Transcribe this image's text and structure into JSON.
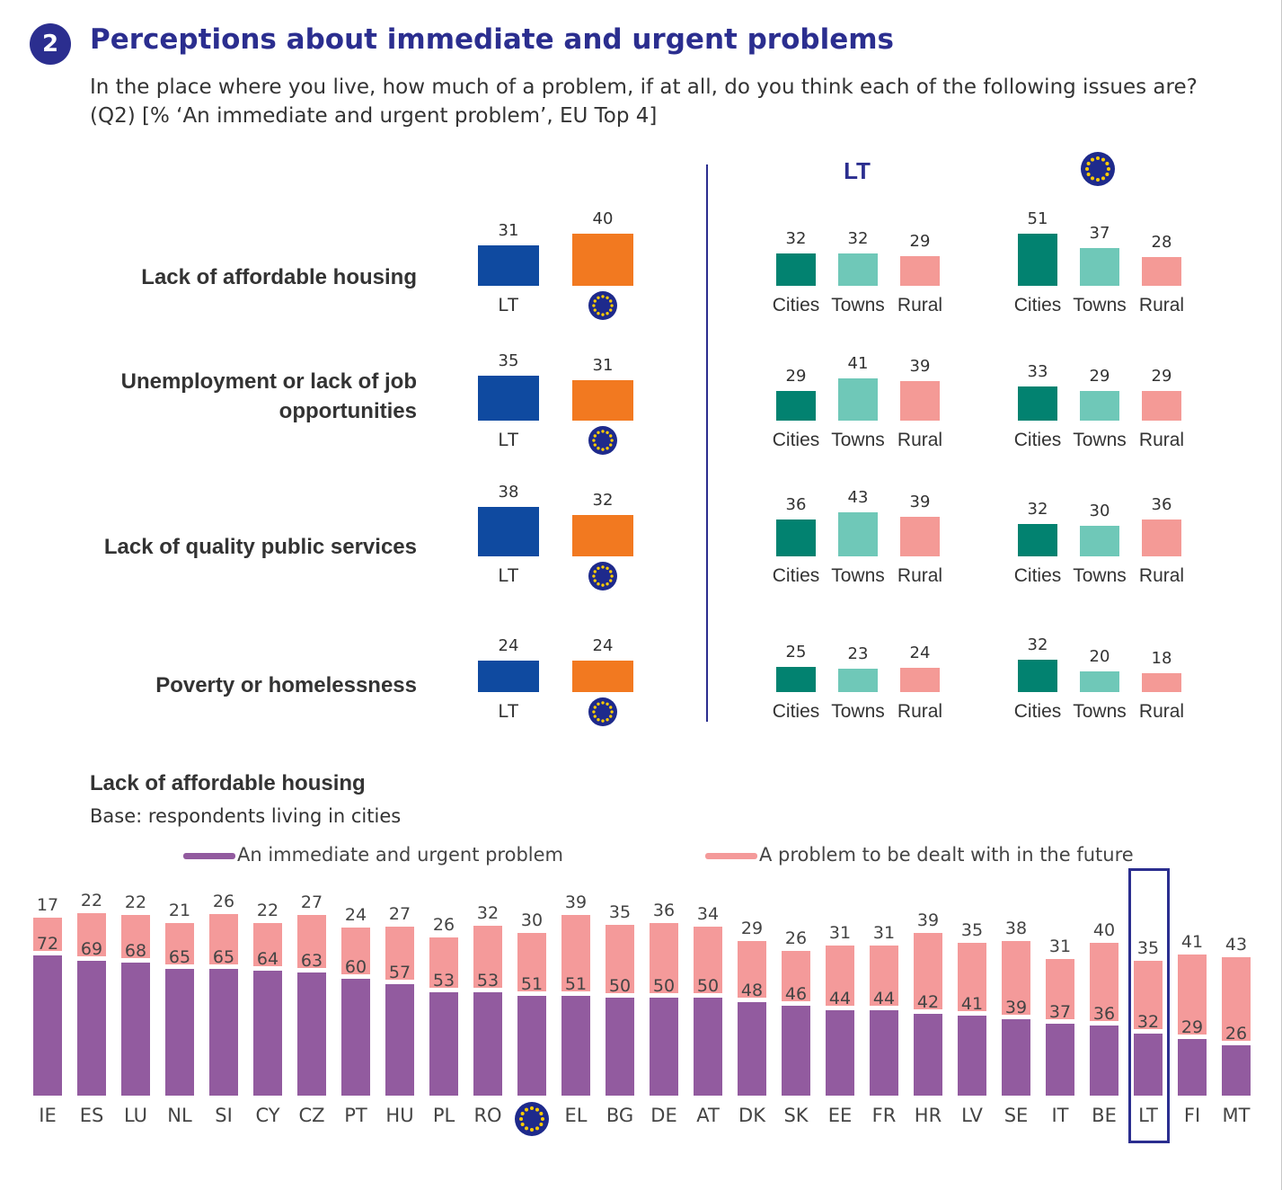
{
  "header": {
    "badge_number": "2",
    "title": "Perceptions about immediate and urgent problems",
    "question_line1": "In the place where you live, how much of a problem, if at all, do you think each of the following issues are?",
    "question_line2": "(Q2) [% ‘An immediate and urgent problem’, EU Top 4]"
  },
  "colors": {
    "title": "#2b2e8f",
    "lt": "#0f4aa0",
    "eu": "#f27920",
    "cities": "#028270",
    "towns": "#6fc8b8",
    "rural": "#f49a96",
    "immediate": "#925b9f",
    "future": "#f49a9a"
  },
  "icons": {
    "eu_flag": "eu-flag-icon",
    "badge": "number-badge"
  },
  "chart_data": [
    {
      "type": "bar",
      "title": "",
      "panel": "overall",
      "categories": [
        "Lack of affordable housing",
        "Unemployment or lack of job opportunities",
        "Lack of quality public services",
        "Poverty or homelessness"
      ],
      "series": [
        {
          "name": "LT",
          "values": [
            31,
            35,
            38,
            24
          ]
        },
        {
          "name": "EU",
          "values": [
            40,
            31,
            32,
            24
          ]
        }
      ]
    },
    {
      "type": "bar",
      "title": "LT",
      "panel": "LT by area",
      "categories": [
        "Lack of affordable housing",
        "Unemployment or lack of job opportunities",
        "Lack of quality public services",
        "Poverty or homelessness"
      ],
      "series": [
        {
          "name": "Cities",
          "values": [
            32,
            29,
            36,
            25
          ]
        },
        {
          "name": "Towns",
          "values": [
            32,
            41,
            43,
            23
          ]
        },
        {
          "name": "Rural",
          "values": [
            29,
            39,
            39,
            24
          ]
        }
      ]
    },
    {
      "type": "bar",
      "title": "",
      "panel": "EU by area",
      "categories": [
        "Lack of affordable housing",
        "Unemployment or lack of job opportunities",
        "Lack of quality public services",
        "Poverty or homelessness"
      ],
      "series": [
        {
          "name": "Cities",
          "values": [
            51,
            33,
            32,
            32
          ]
        },
        {
          "name": "Towns",
          "values": [
            37,
            29,
            30,
            20
          ]
        },
        {
          "name": "Rural",
          "values": [
            28,
            29,
            36,
            18
          ]
        }
      ]
    },
    {
      "type": "bar",
      "stacked": true,
      "title": "Lack of affordable housing",
      "subtitle": "Base: respondents living in cities",
      "legend_position": "top",
      "categories": [
        "IE",
        "ES",
        "LU",
        "NL",
        "SI",
        "CY",
        "CZ",
        "PT",
        "HU",
        "PL",
        "RO",
        "EU",
        "EL",
        "BG",
        "DE",
        "AT",
        "DK",
        "SK",
        "EE",
        "FR",
        "HR",
        "LV",
        "SE",
        "IT",
        "BE",
        "LT",
        "FI",
        "MT"
      ],
      "highlight": "LT",
      "series": [
        {
          "name": "An immediate and urgent problem",
          "values": [
            72,
            69,
            68,
            65,
            65,
            64,
            63,
            60,
            57,
            53,
            53,
            51,
            51,
            50,
            50,
            50,
            48,
            46,
            44,
            44,
            42,
            41,
            39,
            37,
            36,
            32,
            29,
            26
          ]
        },
        {
          "name": "A problem to be dealt with in the future",
          "values": [
            17,
            22,
            22,
            21,
            26,
            22,
            27,
            24,
            27,
            26,
            32,
            30,
            39,
            35,
            36,
            34,
            29,
            26,
            31,
            31,
            39,
            35,
            38,
            31,
            40,
            35,
            41,
            43
          ]
        }
      ]
    }
  ]
}
